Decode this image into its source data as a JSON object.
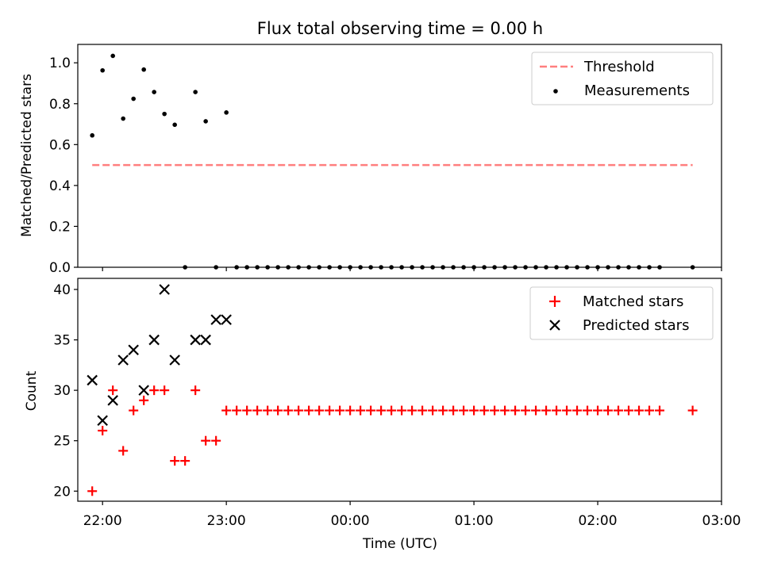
{
  "chart_data": [
    {
      "type": "scatter",
      "title": "Flux total observing time = 0.00 h",
      "xlabel": "",
      "ylabel": "Matched/Predicted stars",
      "xlim": [
        "21:48",
        "03:00"
      ],
      "ylim": [
        0,
        1.09
      ],
      "yticks": [
        0.0,
        0.2,
        0.4,
        0.6,
        0.8,
        1.0
      ],
      "ytick_labels": [
        "0.0",
        "0.2",
        "0.4",
        "0.6",
        "0.8",
        "1.0"
      ],
      "legend_position": "top-right",
      "grid": false,
      "series": [
        {
          "name": "Threshold",
          "kind": "dashed-line",
          "color": "#ff7f7f",
          "x": [
            "21:55",
            "02:46"
          ],
          "y": [
            0.5,
            0.5
          ]
        },
        {
          "name": "Measurements",
          "kind": "points",
          "color": "#000000",
          "x": [
            "21:55",
            "22:00",
            "22:05",
            "22:10",
            "22:15",
            "22:20",
            "22:25",
            "22:30",
            "22:35",
            "22:40",
            "22:45",
            "22:50",
            "22:55",
            "23:00",
            "23:05",
            "23:10",
            "23:15",
            "23:20",
            "23:25",
            "23:30",
            "23:35",
            "23:40",
            "23:45",
            "23:50",
            "23:55",
            "00:00",
            "00:05",
            "00:10",
            "00:15",
            "00:20",
            "00:25",
            "00:30",
            "00:35",
            "00:40",
            "00:45",
            "00:50",
            "00:55",
            "01:00",
            "01:05",
            "01:10",
            "01:15",
            "01:20",
            "01:25",
            "01:30",
            "01:35",
            "01:40",
            "01:45",
            "01:50",
            "01:55",
            "02:00",
            "02:05",
            "02:10",
            "02:15",
            "02:20",
            "02:25",
            "02:30",
            "02:46"
          ],
          "y": [
            0.645,
            0.963,
            1.034,
            0.727,
            0.824,
            0.967,
            0.857,
            0.75,
            0.697,
            0,
            0.857,
            0.714,
            0,
            0.757,
            0,
            0,
            0,
            0,
            0,
            0,
            0,
            0,
            0,
            0,
            0,
            0,
            0,
            0,
            0,
            0,
            0,
            0,
            0,
            0,
            0,
            0,
            0,
            0,
            0,
            0,
            0,
            0,
            0,
            0,
            0,
            0,
            0,
            0,
            0,
            0,
            0,
            0,
            0,
            0,
            0,
            0,
            0
          ]
        }
      ]
    },
    {
      "type": "scatter",
      "title": "",
      "xlabel": "Time (UTC)",
      "ylabel": "Count",
      "xlim": [
        "21:48",
        "03:00"
      ],
      "ylim": [
        19.0,
        41.1
      ],
      "yticks": [
        20,
        25,
        30,
        35,
        40
      ],
      "ytick_labels": [
        "20",
        "25",
        "30",
        "35",
        "40"
      ],
      "xticks": [
        "22:00",
        "23:00",
        "00:00",
        "01:00",
        "02:00",
        "03:00"
      ],
      "legend_position": "top-right",
      "grid": false,
      "series": [
        {
          "name": "Matched stars",
          "marker": "plus",
          "color": "#ff0000",
          "x": [
            "21:55",
            "22:00",
            "22:05",
            "22:10",
            "22:15",
            "22:20",
            "22:25",
            "22:30",
            "22:35",
            "22:40",
            "22:45",
            "22:50",
            "22:55",
            "23:00",
            "23:05",
            "23:10",
            "23:15",
            "23:20",
            "23:25",
            "23:30",
            "23:35",
            "23:40",
            "23:45",
            "23:50",
            "23:55",
            "00:00",
            "00:05",
            "00:10",
            "00:15",
            "00:20",
            "00:25",
            "00:30",
            "00:35",
            "00:40",
            "00:45",
            "00:50",
            "00:55",
            "01:00",
            "01:05",
            "01:10",
            "01:15",
            "01:20",
            "01:25",
            "01:30",
            "01:35",
            "01:40",
            "01:45",
            "01:50",
            "01:55",
            "02:00",
            "02:05",
            "02:10",
            "02:15",
            "02:20",
            "02:25",
            "02:30",
            "02:46"
          ],
          "y": [
            20,
            26,
            30,
            24,
            28,
            29,
            30,
            30,
            23,
            23,
            30,
            25,
            25,
            28,
            28,
            28,
            28,
            28,
            28,
            28,
            28,
            28,
            28,
            28,
            28,
            28,
            28,
            28,
            28,
            28,
            28,
            28,
            28,
            28,
            28,
            28,
            28,
            28,
            28,
            28,
            28,
            28,
            28,
            28,
            28,
            28,
            28,
            28,
            28,
            28,
            28,
            28,
            28,
            28,
            28,
            28,
            28
          ]
        },
        {
          "name": "Predicted stars",
          "marker": "x",
          "color": "#000000",
          "x": [
            "21:55",
            "22:00",
            "22:05",
            "22:10",
            "22:15",
            "22:20",
            "22:25",
            "22:30",
            "22:35",
            "22:45",
            "22:50",
            "22:55",
            "23:00"
          ],
          "y": [
            31,
            27,
            29,
            33,
            34,
            30,
            35,
            40,
            33,
            35,
            35,
            37,
            37
          ]
        }
      ]
    }
  ]
}
